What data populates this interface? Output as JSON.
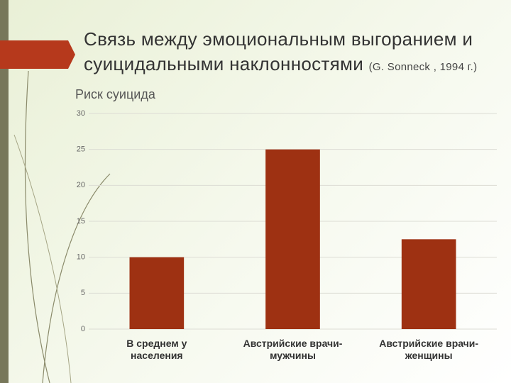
{
  "chart_data": {
    "type": "bar",
    "title": "Связь между эмоциональным выгоранием и суицидальными наклонностями",
    "subtitle": "(G. Sonneck , 1994 г.)",
    "y_label": "Риск суицида",
    "categories": [
      "В среднем у населения",
      "Австрийские врачи-мужчины",
      "Австрийские врачи-женщины"
    ],
    "values": [
      10,
      25,
      12.5
    ],
    "color": "#9e3112",
    "ylim": [
      0,
      30
    ],
    "yticks": [
      0,
      5,
      10,
      15,
      20,
      25,
      30
    ],
    "grid": true
  }
}
